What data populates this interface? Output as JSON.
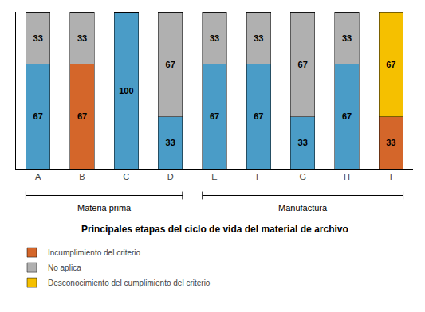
{
  "chart_data": {
    "type": "bar",
    "stacked": true,
    "categories": [
      "A",
      "B",
      "C",
      "D",
      "E",
      "F",
      "G",
      "H",
      "I"
    ],
    "series": [
      {
        "name": "Incumplimiento del criterio",
        "color": "#d4662a",
        "values": [
          0,
          67,
          0,
          0,
          0,
          0,
          0,
          0,
          33
        ]
      },
      {
        "color": "#4a9cc7",
        "values": [
          67,
          0,
          100,
          33,
          67,
          67,
          33,
          67,
          0
        ]
      },
      {
        "name": "No aplica",
        "color": "#b0b0b0",
        "values": [
          33,
          33,
          0,
          67,
          33,
          33,
          67,
          33,
          0
        ]
      },
      {
        "name": "Desconocimiento del cumplimiento del criterio",
        "color": "#f5c000",
        "values": [
          0,
          0,
          0,
          0,
          0,
          0,
          0,
          0,
          67
        ]
      }
    ],
    "groups": [
      {
        "label": "Materia prima",
        "from": "A",
        "to": "D"
      },
      {
        "label": "Manufactura",
        "from": "E",
        "to": "I"
      }
    ],
    "x_label": "Principales etapas del ciclo de vida del material de archivo",
    "ylim": [
      0,
      100
    ],
    "yticks": [],
    "tick_labels": "x",
    "data_labels": true,
    "grid": false,
    "legend": "lower left"
  }
}
